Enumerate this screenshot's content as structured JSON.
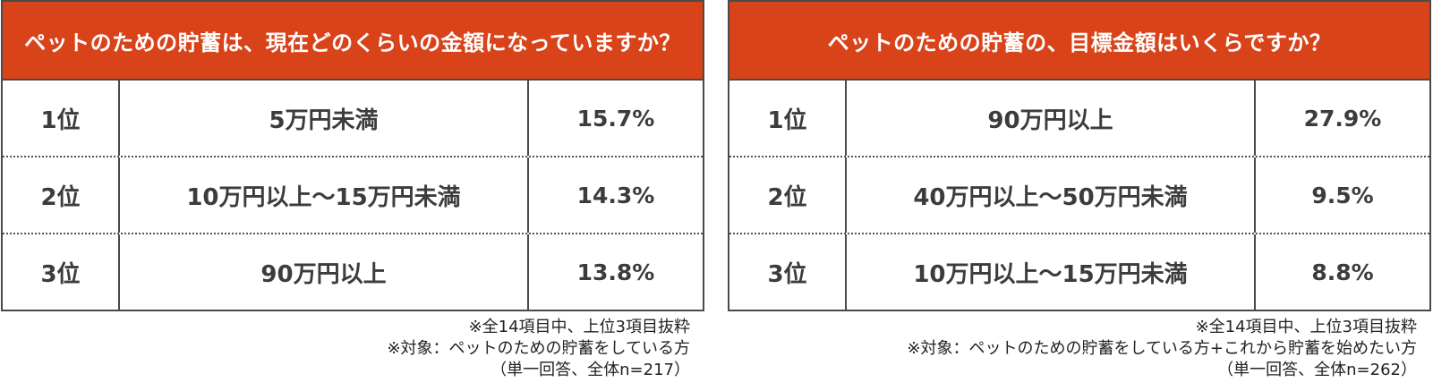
{
  "colors": {
    "header_bg": "#D9431A",
    "header_text": "#FFFFFF",
    "border": "#4A4A4A"
  },
  "chart_data": [
    {
      "type": "table",
      "title": "ペットのための貯蓄は、現在どのくらいの金額になっていますか？",
      "rows": [
        {
          "rank": "1位",
          "label": "5万円未満",
          "value": 15.7,
          "display": "15.7%"
        },
        {
          "rank": "2位",
          "label": "10万円以上～15万円未満",
          "value": 14.3,
          "display": "14.3%"
        },
        {
          "rank": "3位",
          "label": "90万円以上",
          "value": 13.8,
          "display": "13.8%"
        }
      ],
      "notes": [
        "※全14項目中、上位3項目抜粋",
        "※対象：ペットのための貯蓄をしている方",
        "（単一回答、全体n=217）"
      ]
    },
    {
      "type": "table",
      "title": "ペットのための貯蓄の、目標金額はいくらですか？",
      "rows": [
        {
          "rank": "1位",
          "label": "90万円以上",
          "value": 27.9,
          "display": "27.9%"
        },
        {
          "rank": "2位",
          "label": "40万円以上～50万円未満",
          "value": 9.5,
          "display": "9.5%"
        },
        {
          "rank": "3位",
          "label": "10万円以上～15万円未満",
          "value": 8.8,
          "display": "8.8%"
        }
      ],
      "notes": [
        "※全14項目中、上位3項目抜粋",
        "※対象：ペットのための貯蓄をしている方+これから貯蓄を始めたい方",
        "（単一回答、全体n=262）"
      ]
    }
  ]
}
